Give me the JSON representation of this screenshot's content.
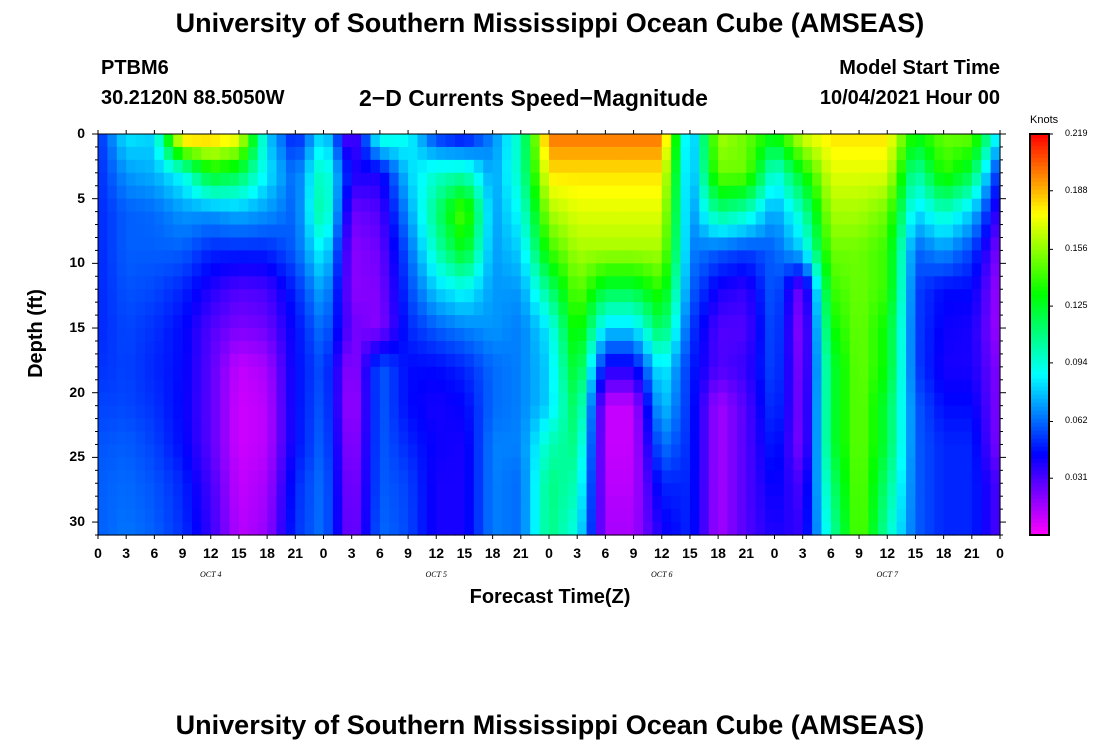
{
  "page": {
    "title_top": "University of Southern Mississippi Ocean Cube (AMSEAS)",
    "title_bottom": "University of Southern Mississippi Ocean Cube (AMSEAS)",
    "station_id": "PTBM6",
    "station_coords": "30.2120N  88.5050W",
    "plot_subtitle": "2−D Currents Speed−Magnitude",
    "model_start_label": "Model Start Time",
    "model_start_value": "10/04/2021 Hour 00"
  },
  "chart_data": {
    "type": "heatmap",
    "title": "2-D Currents Speed-Magnitude",
    "xlabel": "Forecast Time(Z)",
    "ylabel": "Depth (ft)",
    "x_range_hours": [
      0,
      96
    ],
    "y_range_ft": [
      0,
      31
    ],
    "y_inverted": true,
    "x_tick_hours": [
      0,
      3,
      6,
      9,
      12,
      15,
      18,
      21,
      24,
      27,
      30,
      33,
      36,
      39,
      42,
      45,
      48,
      51,
      54,
      57,
      60,
      63,
      66,
      69,
      72,
      75,
      78,
      81,
      84,
      87,
      90,
      93,
      96
    ],
    "x_tick_labels": [
      "0",
      "3",
      "6",
      "9",
      "12",
      "15",
      "18",
      "21",
      "0",
      "3",
      "6",
      "9",
      "12",
      "15",
      "18",
      "21",
      "0",
      "3",
      "6",
      "9",
      "12",
      "15",
      "18",
      "21",
      "0",
      "3",
      "6",
      "9",
      "12",
      "15",
      "18",
      "21",
      "0"
    ],
    "day_labels": [
      {
        "text": "OCT 4",
        "hour": 12
      },
      {
        "text": "OCT 5",
        "hour": 36
      },
      {
        "text": "OCT 6",
        "hour": 60
      },
      {
        "text": "OCT 7",
        "hour": 84
      }
    ],
    "y_ticks": [
      0,
      5,
      10,
      15,
      20,
      25,
      30
    ],
    "y_tick_labels": [
      "0",
      "5",
      "10",
      "15",
      "20",
      "25",
      "30"
    ],
    "colorbar": {
      "unit": "Knots",
      "min": 0.0,
      "max": 0.219,
      "ticks": [
        0.219,
        0.188,
        0.156,
        0.125,
        0.094,
        0.062,
        0.031
      ],
      "tick_labels": [
        "0.219",
        "0.188",
        "0.156",
        "0.125",
        "0.094",
        "0.062",
        "0.031"
      ]
    },
    "hours": [
      0,
      3,
      6,
      9,
      12,
      15,
      18,
      21,
      24,
      27,
      30,
      33,
      36,
      39,
      42,
      45,
      48,
      51,
      54,
      57,
      60,
      63,
      66,
      69,
      72,
      75,
      78,
      81,
      84,
      87,
      90,
      93,
      96
    ],
    "depths_ft": [
      0,
      3,
      6,
      9,
      12,
      15,
      18,
      21,
      24,
      27,
      31
    ],
    "speed_knots": [
      [
        0.05,
        0.085,
        0.08,
        0.195,
        0.19,
        0.18,
        0.08,
        0.045,
        0.085,
        0.02,
        0.1,
        0.09,
        0.05,
        0.04,
        0.066,
        0.1,
        0.2,
        0.2,
        0.2,
        0.2,
        0.2,
        0.066,
        0.16,
        0.15,
        0.13,
        0.17,
        0.18,
        0.18,
        0.18,
        0.13,
        0.15,
        0.15,
        0.08
      ],
      [
        0.05,
        0.07,
        0.075,
        0.09,
        0.13,
        0.12,
        0.085,
        0.06,
        0.104,
        0.04,
        0.04,
        0.08,
        0.096,
        0.1,
        0.07,
        0.1,
        0.18,
        0.18,
        0.18,
        0.18,
        0.18,
        0.066,
        0.15,
        0.15,
        0.09,
        0.13,
        0.17,
        0.17,
        0.17,
        0.1,
        0.14,
        0.12,
        0.045
      ],
      [
        0.05,
        0.06,
        0.062,
        0.07,
        0.07,
        0.075,
        0.07,
        0.06,
        0.11,
        0.025,
        0.03,
        0.07,
        0.11,
        0.15,
        0.07,
        0.09,
        0.16,
        0.17,
        0.17,
        0.17,
        0.17,
        0.066,
        0.11,
        0.1,
        0.07,
        0.1,
        0.16,
        0.16,
        0.15,
        0.08,
        0.1,
        0.08,
        0.03
      ],
      [
        0.05,
        0.06,
        0.06,
        0.06,
        0.05,
        0.05,
        0.05,
        0.06,
        0.09,
        0.02,
        0.025,
        0.06,
        0.1,
        0.13,
        0.07,
        0.08,
        0.14,
        0.16,
        0.16,
        0.16,
        0.16,
        0.066,
        0.06,
        0.055,
        0.06,
        0.08,
        0.15,
        0.15,
        0.14,
        0.06,
        0.07,
        0.055,
        0.02
      ],
      [
        0.05,
        0.058,
        0.056,
        0.05,
        0.038,
        0.03,
        0.032,
        0.05,
        0.075,
        0.02,
        0.022,
        0.055,
        0.08,
        0.09,
        0.07,
        0.07,
        0.11,
        0.15,
        0.12,
        0.12,
        0.14,
        0.062,
        0.04,
        0.035,
        0.062,
        0.02,
        0.14,
        0.15,
        0.14,
        0.055,
        0.045,
        0.045,
        0.015
      ],
      [
        0.05,
        0.056,
        0.052,
        0.045,
        0.03,
        0.022,
        0.025,
        0.045,
        0.065,
        0.025,
        0.02,
        0.05,
        0.06,
        0.066,
        0.07,
        0.065,
        0.085,
        0.14,
        0.08,
        0.08,
        0.12,
        0.055,
        0.03,
        0.03,
        0.06,
        0.015,
        0.13,
        0.15,
        0.13,
        0.055,
        0.042,
        0.04,
        0.015
      ],
      [
        0.052,
        0.055,
        0.05,
        0.045,
        0.028,
        0.01,
        0.015,
        0.045,
        0.058,
        0.015,
        0.06,
        0.045,
        0.045,
        0.05,
        0.062,
        0.066,
        0.08,
        0.13,
        0.04,
        0.04,
        0.09,
        0.05,
        0.03,
        0.035,
        0.058,
        0.018,
        0.12,
        0.15,
        0.13,
        0.055,
        0.04,
        0.04,
        0.02
      ],
      [
        0.055,
        0.056,
        0.052,
        0.044,
        0.028,
        0.008,
        0.012,
        0.045,
        0.06,
        0.012,
        0.06,
        0.045,
        0.04,
        0.044,
        0.062,
        0.066,
        0.08,
        0.12,
        0.01,
        0.01,
        0.08,
        0.05,
        0.015,
        0.03,
        0.055,
        0.02,
        0.12,
        0.15,
        0.12,
        0.06,
        0.045,
        0.045,
        0.02
      ],
      [
        0.058,
        0.06,
        0.055,
        0.045,
        0.028,
        0.008,
        0.012,
        0.045,
        0.062,
        0.015,
        0.06,
        0.05,
        0.042,
        0.04,
        0.066,
        0.066,
        0.1,
        0.11,
        0.01,
        0.01,
        0.065,
        0.05,
        0.015,
        0.03,
        0.05,
        0.02,
        0.12,
        0.15,
        0.12,
        0.06,
        0.05,
        0.05,
        0.02
      ],
      [
        0.06,
        0.062,
        0.058,
        0.05,
        0.032,
        0.01,
        0.015,
        0.05,
        0.064,
        0.018,
        0.06,
        0.055,
        0.04,
        0.04,
        0.066,
        0.062,
        0.11,
        0.1,
        0.012,
        0.012,
        0.05,
        0.05,
        0.015,
        0.03,
        0.045,
        0.03,
        0.11,
        0.15,
        0.11,
        0.06,
        0.05,
        0.05,
        0.03
      ],
      [
        0.06,
        0.064,
        0.06,
        0.052,
        0.035,
        0.012,
        0.018,
        0.052,
        0.064,
        0.02,
        0.062,
        0.056,
        0.04,
        0.04,
        0.066,
        0.062,
        0.11,
        0.09,
        0.015,
        0.015,
        0.04,
        0.05,
        0.015,
        0.03,
        0.04,
        0.035,
        0.1,
        0.15,
        0.1,
        0.06,
        0.05,
        0.05,
        0.03
      ]
    ]
  }
}
